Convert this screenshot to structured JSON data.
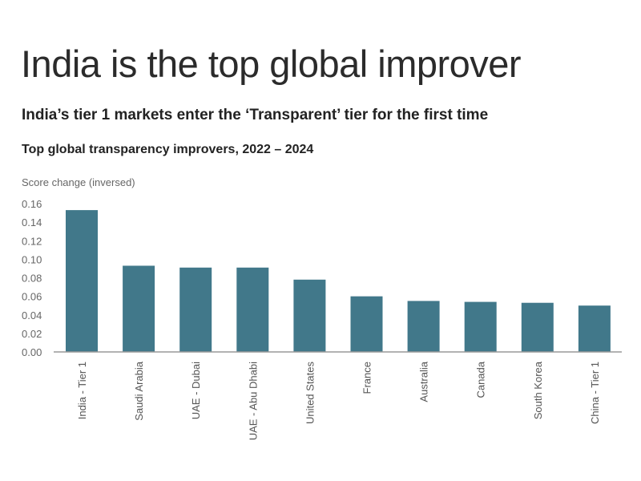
{
  "header": {
    "title": "India is the top global improver",
    "subtitle": "India’s tier 1 markets enter the ‘Transparent’ tier for the first time"
  },
  "chart_data": {
    "type": "bar",
    "title": "Top global transparency improvers, 2022 – 2024",
    "ylabel": "Score change (inversed)",
    "xlabel": "",
    "ylim": [
      0,
      0.16
    ],
    "yticks": [
      "0.00",
      "0.02",
      "0.04",
      "0.06",
      "0.08",
      "0.10",
      "0.12",
      "0.14",
      "0.16"
    ],
    "grid": false,
    "bar_color": "#41788a",
    "categories": [
      "India - Tier 1",
      "Saudi Arabia",
      "UAE - Dubai",
      "UAE - Abu Dhabi",
      "United States",
      "France",
      "Australia",
      "Canada",
      "South Korea",
      "China - Tier 1"
    ],
    "values": [
      0.153,
      0.093,
      0.091,
      0.091,
      0.078,
      0.06,
      0.055,
      0.054,
      0.053,
      0.05
    ]
  }
}
